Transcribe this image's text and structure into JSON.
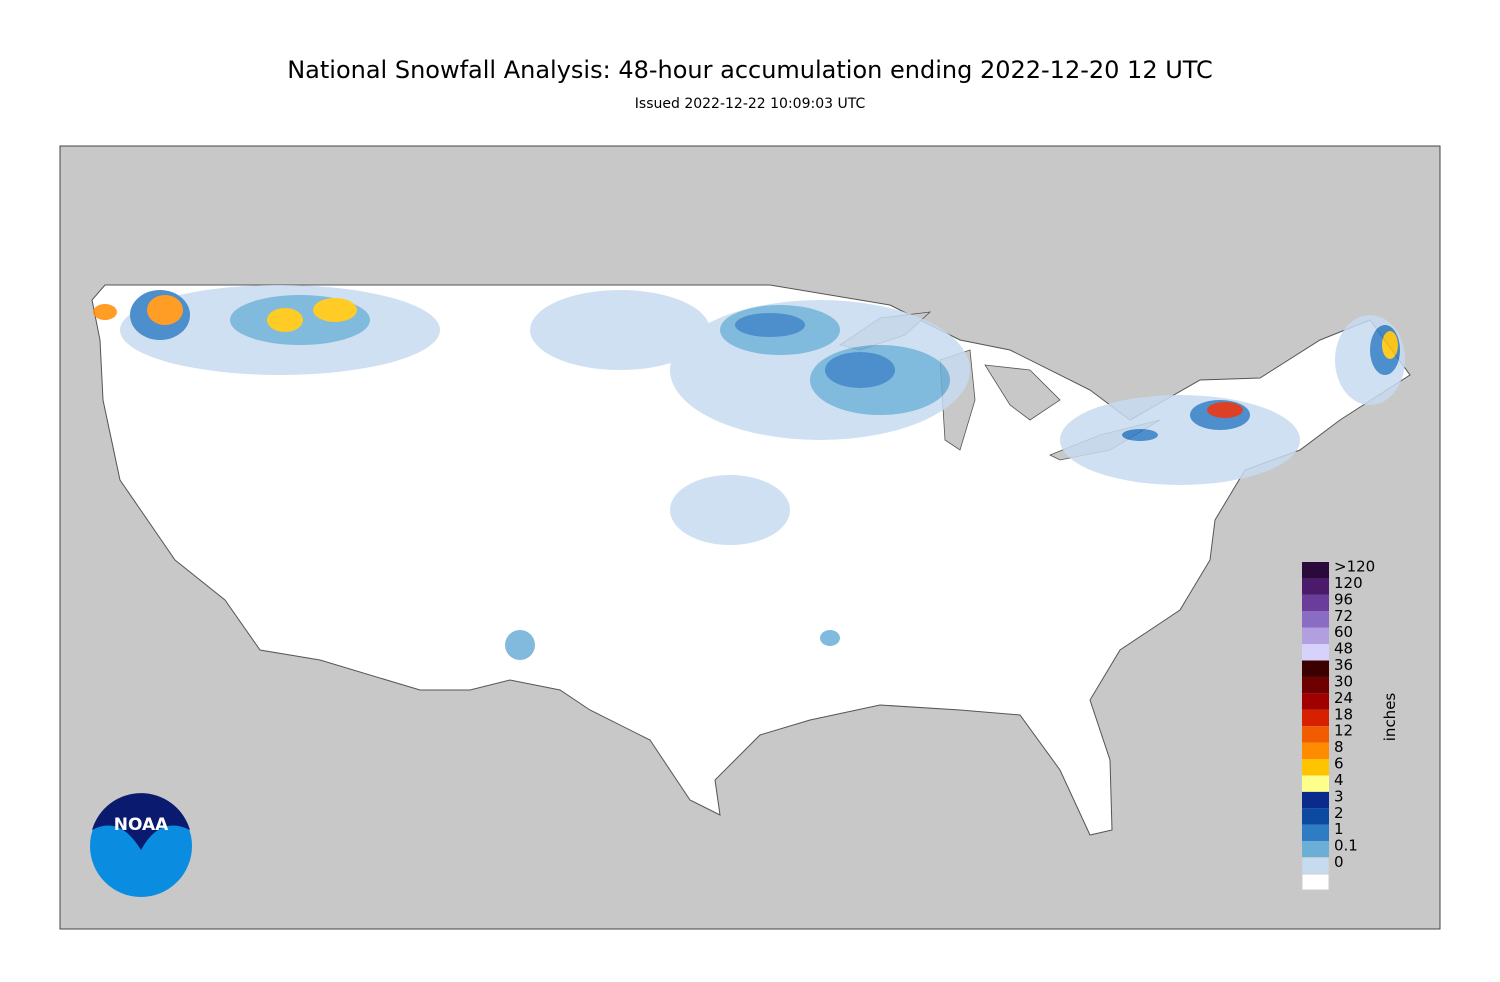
{
  "header": {
    "title": "National Snowfall Analysis: 48-hour accumulation ending 2022-12-20 12 UTC",
    "subtitle": "Issued 2022-12-22 10:09:03 UTC"
  },
  "legend": {
    "unit": "inches",
    "items": [
      {
        "label": ">120",
        "color": "#2a0a3a"
      },
      {
        "label": "120",
        "color": "#4b1a6b"
      },
      {
        "label": "96",
        "color": "#6a3d9a"
      },
      {
        "label": "72",
        "color": "#8a6cc4"
      },
      {
        "label": "60",
        "color": "#b19fe0"
      },
      {
        "label": "48",
        "color": "#d6d2fb"
      },
      {
        "label": "36",
        "color": "#3b0000"
      },
      {
        "label": "30",
        "color": "#6e0000"
      },
      {
        "label": "24",
        "color": "#a00000"
      },
      {
        "label": "18",
        "color": "#d62000"
      },
      {
        "label": "12",
        "color": "#f25c00"
      },
      {
        "label": "8",
        "color": "#ff8c00"
      },
      {
        "label": "6",
        "color": "#ffc400"
      },
      {
        "label": "4",
        "color": "#ffff8c"
      },
      {
        "label": "3",
        "color": "#0a2a8c"
      },
      {
        "label": "2",
        "color": "#0b4aa0"
      },
      {
        "label": "1",
        "color": "#2e7cc4"
      },
      {
        "label": "0.1",
        "color": "#6baed6"
      },
      {
        "label": "0",
        "color": "#c6dbef"
      }
    ]
  },
  "logo": {
    "text": "NOAA"
  }
}
